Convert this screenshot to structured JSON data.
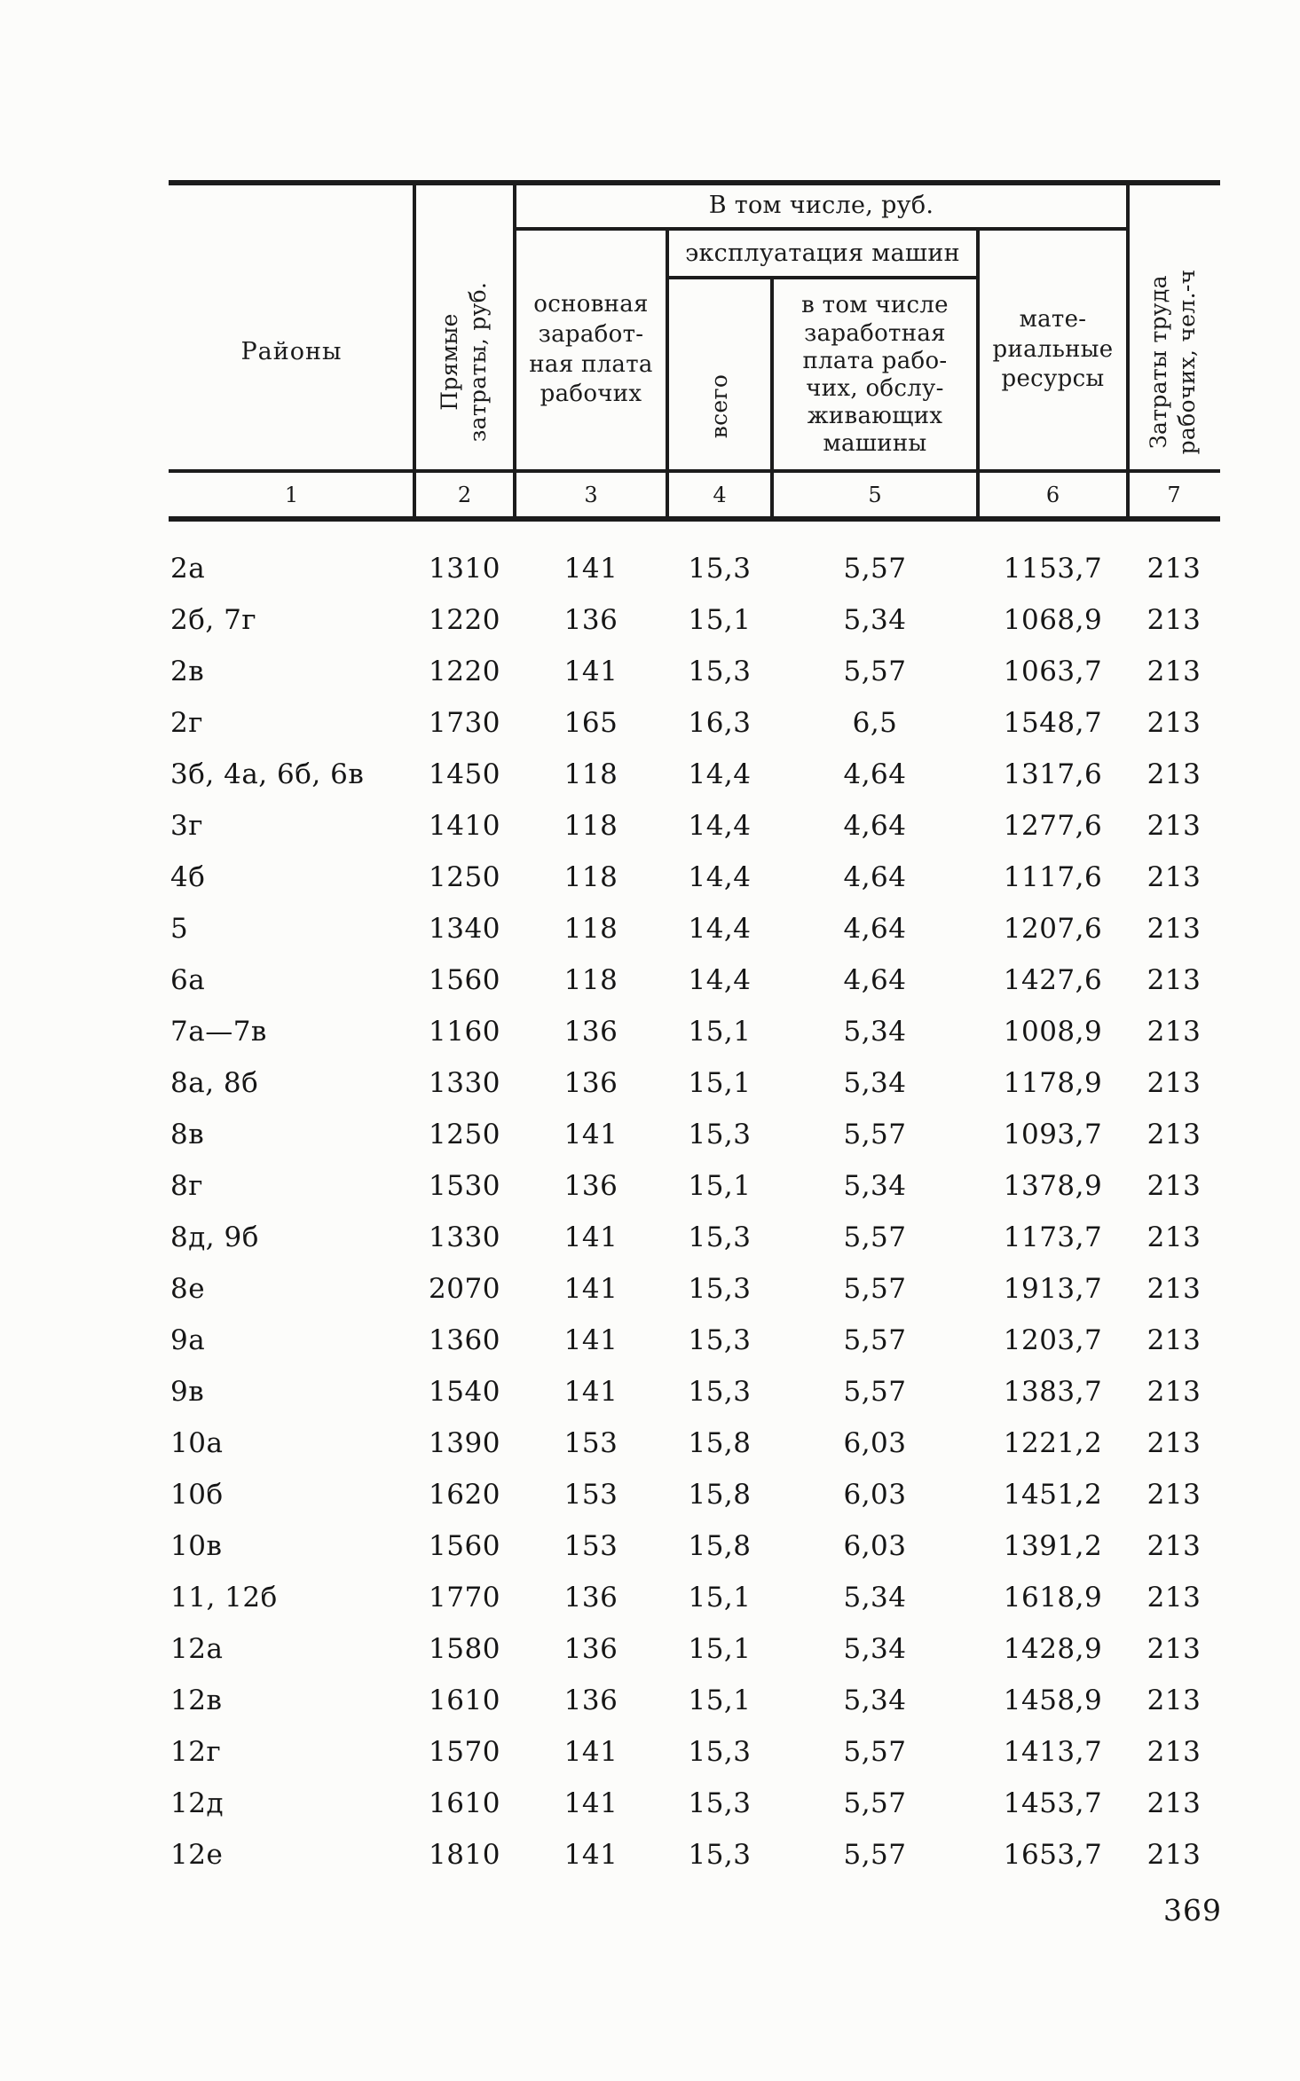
{
  "page": {
    "number": "369"
  },
  "colors": {
    "ink": "#1a1a1a",
    "paper": "#fcfcfa"
  },
  "table": {
    "header": {
      "regions": "Районы",
      "direct_costs": "Прямые\nзатраты, руб.",
      "including_rub": "В том числе, руб.",
      "base_wage": "основная\nзаработ-\nная плата\nрабочих",
      "machines_group": "эксплуатация машин",
      "machines_total": "всего",
      "machines_wage": "в том числе\nзаработная\nплата рабо-\nчих, обслу-\nживающих\nмашины",
      "materials": "мате-\nриальные\nресурсы",
      "labor": "Затраты труда\nрабочих, чел.-ч",
      "column_numbers": [
        "1",
        "2",
        "3",
        "4",
        "5",
        "6",
        "7"
      ]
    },
    "rows": [
      [
        "2а",
        "1310",
        "141",
        "15,3",
        "5,57",
        "1153,7",
        "213"
      ],
      [
        "2б, 7г",
        "1220",
        "136",
        "15,1",
        "5,34",
        "1068,9",
        "213"
      ],
      [
        "2в",
        "1220",
        "141",
        "15,3",
        "5,57",
        "1063,7",
        "213"
      ],
      [
        "2г",
        "1730",
        "165",
        "16,3",
        "6,5",
        "1548,7",
        "213"
      ],
      [
        "3б, 4а, 6б, 6в",
        "1450",
        "118",
        "14,4",
        "4,64",
        "1317,6",
        "213"
      ],
      [
        "3г",
        "1410",
        "118",
        "14,4",
        "4,64",
        "1277,6",
        "213"
      ],
      [
        "4б",
        "1250",
        "118",
        "14,4",
        "4,64",
        "1117,6",
        "213"
      ],
      [
        "5",
        "1340",
        "118",
        "14,4",
        "4,64",
        "1207,6",
        "213"
      ],
      [
        "6а",
        "1560",
        "118",
        "14,4",
        "4,64",
        "1427,6",
        "213"
      ],
      [
        "7а—7в",
        "1160",
        "136",
        "15,1",
        "5,34",
        "1008,9",
        "213"
      ],
      [
        "8а, 8б",
        "1330",
        "136",
        "15,1",
        "5,34",
        "1178,9",
        "213"
      ],
      [
        "8в",
        "1250",
        "141",
        "15,3",
        "5,57",
        "1093,7",
        "213"
      ],
      [
        "8г",
        "1530",
        "136",
        "15,1",
        "5,34",
        "1378,9",
        "213"
      ],
      [
        "8д, 9б",
        "1330",
        "141",
        "15,3",
        "5,57",
        "1173,7",
        "213"
      ],
      [
        "8е",
        "2070",
        "141",
        "15,3",
        "5,57",
        "1913,7",
        "213"
      ],
      [
        "9а",
        "1360",
        "141",
        "15,3",
        "5,57",
        "1203,7",
        "213"
      ],
      [
        "9в",
        "1540",
        "141",
        "15,3",
        "5,57",
        "1383,7",
        "213"
      ],
      [
        "10а",
        "1390",
        "153",
        "15,8",
        "6,03",
        "1221,2",
        "213"
      ],
      [
        "10б",
        "1620",
        "153",
        "15,8",
        "6,03",
        "1451,2",
        "213"
      ],
      [
        "10в",
        "1560",
        "153",
        "15,8",
        "6,03",
        "1391,2",
        "213"
      ],
      [
        "11, 12б",
        "1770",
        "136",
        "15,1",
        "5,34",
        "1618,9",
        "213"
      ],
      [
        "12а",
        "1580",
        "136",
        "15,1",
        "5,34",
        "1428,9",
        "213"
      ],
      [
        "12в",
        "1610",
        "136",
        "15,1",
        "5,34",
        "1458,9",
        "213"
      ],
      [
        "12г",
        "1570",
        "141",
        "15,3",
        "5,57",
        "1413,7",
        "213"
      ],
      [
        "12д",
        "1610",
        "141",
        "15,3",
        "5,57",
        "1453,7",
        "213"
      ],
      [
        "12е",
        "1810",
        "141",
        "15,3",
        "5,57",
        "1653,7",
        "213"
      ]
    ]
  }
}
